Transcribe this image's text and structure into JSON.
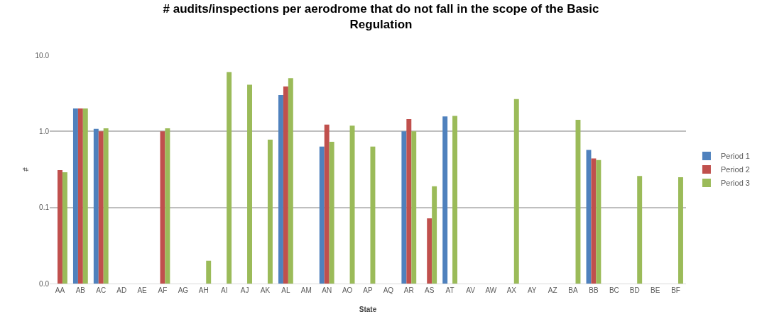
{
  "chart_data": {
    "type": "bar",
    "title": "# audits/inspections per aerodrome that do not fall in the scope of the Basic Regulation",
    "xlabel": "State",
    "ylabel": "#",
    "categories": [
      "AA",
      "AB",
      "AC",
      "AD",
      "AE",
      "AF",
      "AG",
      "AH",
      "AI",
      "AJ",
      "AK",
      "AL",
      "AM",
      "AN",
      "AO",
      "AP",
      "AQ",
      "AR",
      "AS",
      "AT",
      "AV",
      "AW",
      "AX",
      "AY",
      "AZ",
      "BA",
      "BB",
      "BC",
      "BD",
      "BE",
      "BF"
    ],
    "series": [
      {
        "name": "Period 1",
        "color": "#4f81bd",
        "values": [
          null,
          2,
          1.08,
          null,
          null,
          null,
          null,
          null,
          null,
          null,
          null,
          3,
          null,
          0.63,
          null,
          null,
          null,
          1.0,
          null,
          1.57,
          null,
          null,
          null,
          null,
          null,
          null,
          0.57,
          null,
          null,
          null,
          null
        ]
      },
      {
        "name": "Period 2",
        "color": "#c0504d",
        "values": [
          0.31,
          2,
          1.0,
          null,
          null,
          1.0,
          null,
          null,
          null,
          null,
          null,
          3.9,
          null,
          1.23,
          null,
          null,
          null,
          1.45,
          0.072,
          null,
          null,
          null,
          null,
          null,
          null,
          null,
          0.44,
          null,
          null,
          null,
          null
        ]
      },
      {
        "name": "Period 3",
        "color": "#9bbb59",
        "values": [
          0.29,
          2,
          1.1,
          null,
          null,
          1.1,
          null,
          0.02,
          6,
          4.1,
          0.78,
          5,
          null,
          0.73,
          1.19,
          0.63,
          null,
          1.0,
          0.19,
          1.6,
          null,
          null,
          2.66,
          null,
          null,
          1.42,
          0.42,
          null,
          0.26,
          null,
          0.25
        ]
      }
    ],
    "log": "y",
    "ylim": [
      0.01,
      10
    ],
    "yticks": [
      {
        "value": 0.01,
        "label": "0.0"
      },
      {
        "value": 0.1,
        "label": "0.1"
      },
      {
        "value": 1,
        "label": "1.0"
      },
      {
        "value": 10,
        "label": "10.0"
      }
    ],
    "grid": "y",
    "legend": "right"
  }
}
